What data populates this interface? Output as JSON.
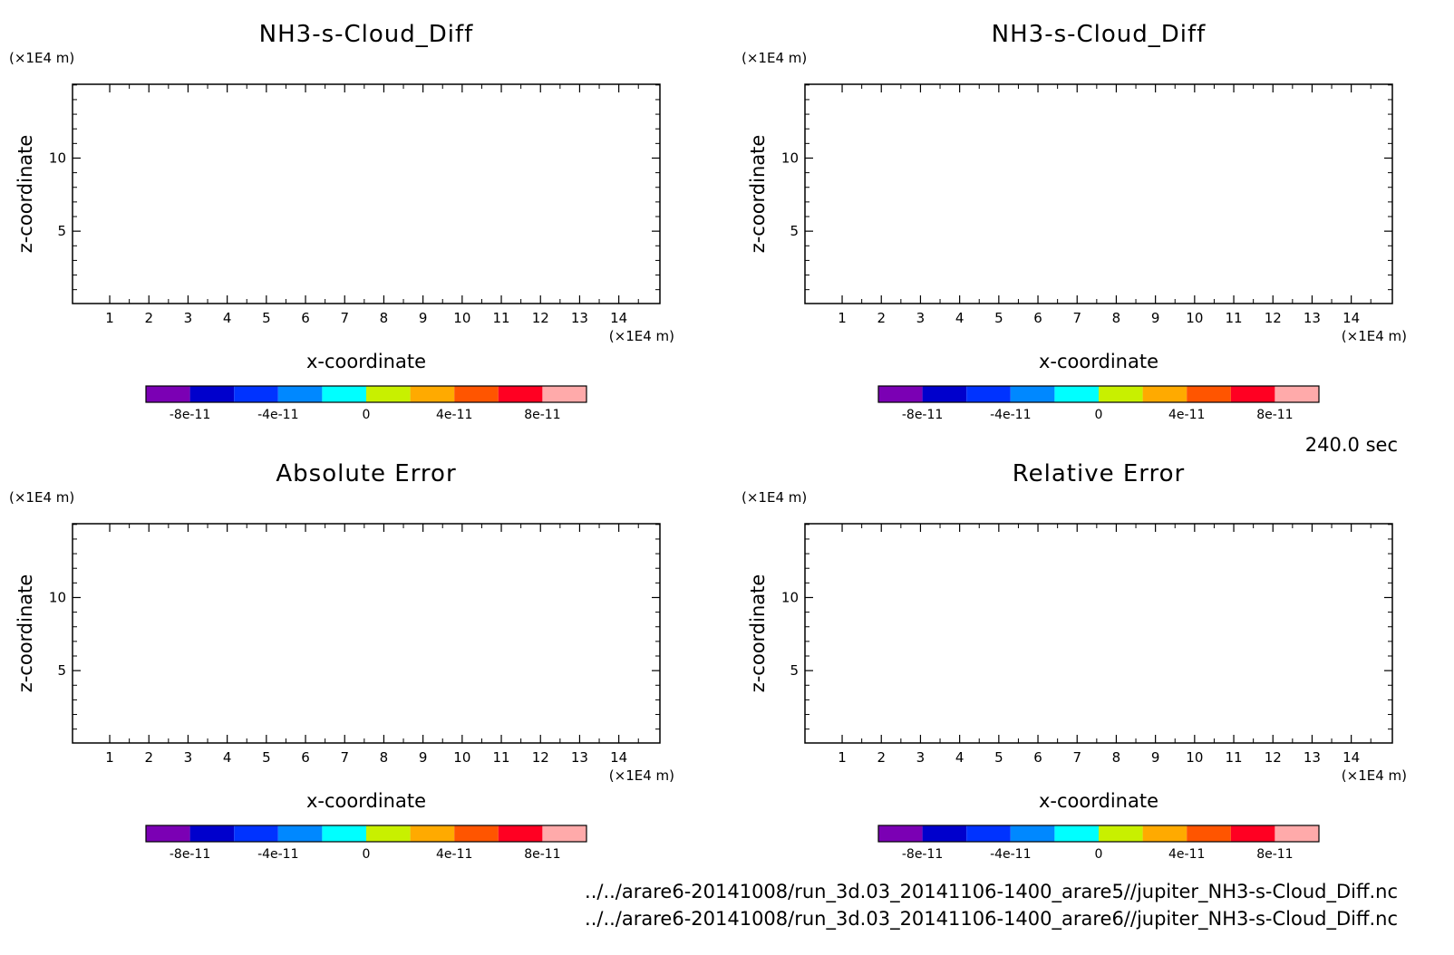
{
  "time_label": "240.0 sec",
  "file_paths": [
    "../../arare6-20141008/run_3d.03_20141106-1400_arare5//jupiter_NH3-s-Cloud_Diff.nc",
    "../../arare6-20141008/run_3d.03_20141106-1400_arare6//jupiter_NH3-s-Cloud_Diff.nc"
  ],
  "colorbar": {
    "colors": [
      "#7b00b4",
      "#0000cc",
      "#0033ff",
      "#0088ff",
      "#00ffff",
      "#c8f000",
      "#ffaa00",
      "#ff5500",
      "#ff0022",
      "#ffaaaa"
    ],
    "tick_labels": [
      "-8e-11",
      "-4e-11",
      "0",
      "4e-11",
      "8e-11"
    ],
    "tick_values": [
      -8e-11,
      -4e-11,
      0,
      4e-11,
      8e-11
    ],
    "range": [
      -1e-10,
      1e-10
    ]
  },
  "chart_data": [
    {
      "type": "heatmap",
      "title": "NH3-s-Cloud_Diff",
      "xlabel": "x-coordinate",
      "ylabel": "z-coordinate",
      "x_unit": "(×1E4 m)",
      "y_unit": "(×1E4 m)",
      "xlim": [
        0.05,
        15.05
      ],
      "ylim": [
        0.05,
        15.05
      ],
      "x_ticks": [
        1,
        2,
        3,
        4,
        5,
        6,
        7,
        8,
        9,
        10,
        11,
        12,
        13,
        14
      ],
      "y_ticks": [
        5,
        10
      ],
      "values": []
    },
    {
      "type": "heatmap",
      "title": "NH3-s-Cloud_Diff",
      "xlabel": "x-coordinate",
      "ylabel": "z-coordinate",
      "x_unit": "(×1E4 m)",
      "y_unit": "(×1E4 m)",
      "xlim": [
        0.05,
        15.05
      ],
      "ylim": [
        0.05,
        15.05
      ],
      "x_ticks": [
        1,
        2,
        3,
        4,
        5,
        6,
        7,
        8,
        9,
        10,
        11,
        12,
        13,
        14
      ],
      "y_ticks": [
        5,
        10
      ],
      "values": []
    },
    {
      "type": "heatmap",
      "title": "Absolute Error",
      "xlabel": "x-coordinate",
      "ylabel": "z-coordinate",
      "x_unit": "(×1E4 m)",
      "y_unit": "(×1E4 m)",
      "xlim": [
        0.05,
        15.05
      ],
      "ylim": [
        0.05,
        15.05
      ],
      "x_ticks": [
        1,
        2,
        3,
        4,
        5,
        6,
        7,
        8,
        9,
        10,
        11,
        12,
        13,
        14
      ],
      "y_ticks": [
        5,
        10
      ],
      "values": []
    },
    {
      "type": "heatmap",
      "title": "Relative Error",
      "xlabel": "x-coordinate",
      "ylabel": "z-coordinate",
      "x_unit": "(×1E4 m)",
      "y_unit": "(×1E4 m)",
      "xlim": [
        0.05,
        15.05
      ],
      "ylim": [
        0.05,
        15.05
      ],
      "x_ticks": [
        1,
        2,
        3,
        4,
        5,
        6,
        7,
        8,
        9,
        10,
        11,
        12,
        13,
        14
      ],
      "y_ticks": [
        5,
        10
      ],
      "values": []
    }
  ]
}
